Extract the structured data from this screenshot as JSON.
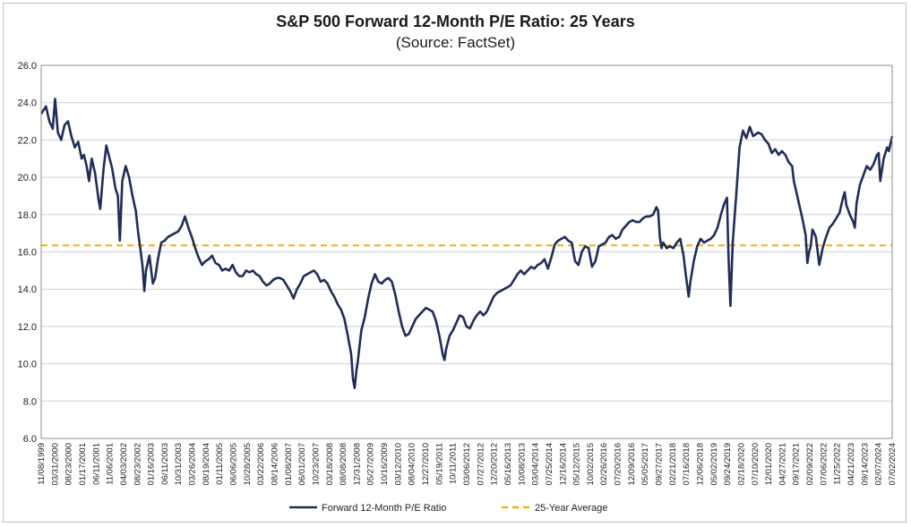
{
  "chart_data": {
    "type": "line",
    "title": "S&P 500 Forward 12-Month P/E Ratio: 25 Years",
    "subtitle": "(Source: FactSet)",
    "xlabel": "",
    "ylabel": "",
    "ylim": [
      6.0,
      26.0
    ],
    "y_ticks": [
      "26.0",
      "24.0",
      "22.0",
      "20.0",
      "18.0",
      "16.0",
      "14.0",
      "12.0",
      "10.0",
      "8.0",
      "6.0"
    ],
    "x_tick_labels": [
      "11/08/1999",
      "03/31/2000",
      "08/23/2000",
      "01/17/2001",
      "06/11/2001",
      "11/06/2001",
      "04/03/2002",
      "08/23/2002",
      "01/16/2003",
      "06/11/2003",
      "10/31/2003",
      "03/26/2004",
      "08/19/2004",
      "01/11/2005",
      "06/06/2005",
      "10/28/2005",
      "03/22/2006",
      "08/14/2006",
      "01/08/2007",
      "06/01/2007",
      "10/23/2007",
      "03/18/2008",
      "08/08/2008",
      "12/31/2008",
      "05/27/2009",
      "10/16/2009",
      "03/12/2010",
      "08/04/2010",
      "12/27/2010",
      "05/19/2011",
      "10/11/2011",
      "03/06/2012",
      "07/27/2012",
      "12/20/2012",
      "05/16/2013",
      "10/08/2013",
      "03/04/2014",
      "07/25/2014",
      "12/16/2014",
      "05/12/2015",
      "10/02/2015",
      "02/26/2016",
      "07/20/2016",
      "12/09/2016",
      "05/05/2017",
      "09/27/2017",
      "02/21/2018",
      "07/16/2018",
      "12/06/2018",
      "05/02/2019",
      "09/24/2019",
      "02/18/2020",
      "07/10/2020",
      "12/01/2020",
      "04/27/2021",
      "09/17/2021",
      "02/09/2022",
      "07/06/2022",
      "11/25/2022",
      "04/21/2023",
      "09/14/2023",
      "02/07/2024",
      "07/02/2024"
    ],
    "grid": true,
    "legend_position": "bottom",
    "series": [
      {
        "name": "Forward 12-Month P/E Ratio",
        "color": "#1f2d5a",
        "values": [
          [
            1999.86,
            23.4
          ],
          [
            2000.0,
            23.8
          ],
          [
            2000.1,
            23.0
          ],
          [
            2000.2,
            22.6
          ],
          [
            2000.27,
            24.2
          ],
          [
            2000.35,
            22.4
          ],
          [
            2000.45,
            22.0
          ],
          [
            2000.55,
            22.8
          ],
          [
            2000.65,
            23.0
          ],
          [
            2000.75,
            22.2
          ],
          [
            2000.85,
            21.6
          ],
          [
            2000.95,
            21.9
          ],
          [
            2001.05,
            21.0
          ],
          [
            2001.12,
            21.2
          ],
          [
            2001.2,
            20.6
          ],
          [
            2001.27,
            19.8
          ],
          [
            2001.35,
            21.0
          ],
          [
            2001.45,
            20.2
          ],
          [
            2001.55,
            18.8
          ],
          [
            2001.6,
            18.3
          ],
          [
            2001.7,
            20.5
          ],
          [
            2001.78,
            21.7
          ],
          [
            2001.85,
            21.2
          ],
          [
            2001.95,
            20.5
          ],
          [
            2002.05,
            19.4
          ],
          [
            2002.12,
            19.0
          ],
          [
            2002.18,
            16.6
          ],
          [
            2002.25,
            19.8
          ],
          [
            2002.35,
            20.6
          ],
          [
            2002.45,
            20.0
          ],
          [
            2002.55,
            19.0
          ],
          [
            2002.65,
            18.2
          ],
          [
            2002.72,
            17.0
          ],
          [
            2002.78,
            16.2
          ],
          [
            2002.85,
            15.2
          ],
          [
            2002.9,
            13.9
          ],
          [
            2002.95,
            15.0
          ],
          [
            2003.05,
            15.8
          ],
          [
            2003.15,
            14.3
          ],
          [
            2003.22,
            14.6
          ],
          [
            2003.3,
            15.6
          ],
          [
            2003.4,
            16.5
          ],
          [
            2003.5,
            16.6
          ],
          [
            2003.6,
            16.8
          ],
          [
            2003.7,
            16.9
          ],
          [
            2003.8,
            17.0
          ],
          [
            2003.9,
            17.1
          ],
          [
            2004.0,
            17.4
          ],
          [
            2004.1,
            17.9
          ],
          [
            2004.2,
            17.3
          ],
          [
            2004.3,
            16.8
          ],
          [
            2004.4,
            16.2
          ],
          [
            2004.5,
            15.7
          ],
          [
            2004.6,
            15.3
          ],
          [
            2004.7,
            15.5
          ],
          [
            2004.8,
            15.6
          ],
          [
            2004.9,
            15.8
          ],
          [
            2005.0,
            15.4
          ],
          [
            2005.1,
            15.3
          ],
          [
            2005.2,
            15.0
          ],
          [
            2005.3,
            15.1
          ],
          [
            2005.4,
            15.0
          ],
          [
            2005.5,
            15.3
          ],
          [
            2005.6,
            14.9
          ],
          [
            2005.7,
            14.7
          ],
          [
            2005.8,
            14.7
          ],
          [
            2005.9,
            15.0
          ],
          [
            2006.0,
            14.9
          ],
          [
            2006.1,
            15.0
          ],
          [
            2006.2,
            14.8
          ],
          [
            2006.3,
            14.7
          ],
          [
            2006.4,
            14.4
          ],
          [
            2006.5,
            14.2
          ],
          [
            2006.6,
            14.3
          ],
          [
            2006.7,
            14.5
          ],
          [
            2006.8,
            14.6
          ],
          [
            2006.9,
            14.6
          ],
          [
            2007.0,
            14.5
          ],
          [
            2007.1,
            14.2
          ],
          [
            2007.2,
            13.9
          ],
          [
            2007.3,
            13.5
          ],
          [
            2007.4,
            14.0
          ],
          [
            2007.5,
            14.3
          ],
          [
            2007.6,
            14.7
          ],
          [
            2007.7,
            14.8
          ],
          [
            2007.8,
            14.9
          ],
          [
            2007.9,
            15.0
          ],
          [
            2008.0,
            14.8
          ],
          [
            2008.1,
            14.4
          ],
          [
            2008.2,
            14.5
          ],
          [
            2008.3,
            14.3
          ],
          [
            2008.4,
            13.9
          ],
          [
            2008.5,
            13.6
          ],
          [
            2008.6,
            13.2
          ],
          [
            2008.7,
            12.9
          ],
          [
            2008.8,
            12.4
          ],
          [
            2008.9,
            11.5
          ],
          [
            2009.0,
            10.5
          ],
          [
            2009.05,
            9.2
          ],
          [
            2009.1,
            8.7
          ],
          [
            2009.15,
            9.6
          ],
          [
            2009.2,
            10.2
          ],
          [
            2009.3,
            11.8
          ],
          [
            2009.4,
            12.5
          ],
          [
            2009.5,
            13.5
          ],
          [
            2009.6,
            14.3
          ],
          [
            2009.7,
            14.8
          ],
          [
            2009.8,
            14.4
          ],
          [
            2009.9,
            14.3
          ],
          [
            2010.0,
            14.5
          ],
          [
            2010.1,
            14.6
          ],
          [
            2010.2,
            14.4
          ],
          [
            2010.3,
            13.7
          ],
          [
            2010.4,
            12.8
          ],
          [
            2010.5,
            12.0
          ],
          [
            2010.6,
            11.5
          ],
          [
            2010.7,
            11.6
          ],
          [
            2010.8,
            12.0
          ],
          [
            2010.9,
            12.4
          ],
          [
            2011.0,
            12.6
          ],
          [
            2011.1,
            12.8
          ],
          [
            2011.2,
            13.0
          ],
          [
            2011.3,
            12.9
          ],
          [
            2011.4,
            12.8
          ],
          [
            2011.5,
            12.3
          ],
          [
            2011.6,
            11.5
          ],
          [
            2011.7,
            10.5
          ],
          [
            2011.75,
            10.2
          ],
          [
            2011.8,
            10.8
          ],
          [
            2011.9,
            11.5
          ],
          [
            2012.0,
            11.8
          ],
          [
            2012.1,
            12.2
          ],
          [
            2012.2,
            12.6
          ],
          [
            2012.3,
            12.5
          ],
          [
            2012.4,
            12.0
          ],
          [
            2012.5,
            11.9
          ],
          [
            2012.6,
            12.3
          ],
          [
            2012.7,
            12.6
          ],
          [
            2012.8,
            12.8
          ],
          [
            2012.9,
            12.6
          ],
          [
            2013.0,
            12.8
          ],
          [
            2013.1,
            13.2
          ],
          [
            2013.2,
            13.6
          ],
          [
            2013.3,
            13.8
          ],
          [
            2013.4,
            13.9
          ],
          [
            2013.5,
            14.0
          ],
          [
            2013.6,
            14.1
          ],
          [
            2013.7,
            14.2
          ],
          [
            2013.8,
            14.5
          ],
          [
            2013.9,
            14.8
          ],
          [
            2014.0,
            15.0
          ],
          [
            2014.1,
            14.8
          ],
          [
            2014.2,
            15.0
          ],
          [
            2014.3,
            15.2
          ],
          [
            2014.4,
            15.1
          ],
          [
            2014.5,
            15.3
          ],
          [
            2014.6,
            15.4
          ],
          [
            2014.7,
            15.6
          ],
          [
            2014.8,
            15.1
          ],
          [
            2014.9,
            15.7
          ],
          [
            2015.0,
            16.4
          ],
          [
            2015.1,
            16.6
          ],
          [
            2015.2,
            16.7
          ],
          [
            2015.3,
            16.8
          ],
          [
            2015.4,
            16.6
          ],
          [
            2015.5,
            16.5
          ],
          [
            2015.6,
            15.5
          ],
          [
            2015.7,
            15.3
          ],
          [
            2015.8,
            16.0
          ],
          [
            2015.9,
            16.3
          ],
          [
            2016.0,
            16.2
          ],
          [
            2016.1,
            15.2
          ],
          [
            2016.2,
            15.5
          ],
          [
            2016.3,
            16.3
          ],
          [
            2016.4,
            16.4
          ],
          [
            2016.5,
            16.5
          ],
          [
            2016.6,
            16.8
          ],
          [
            2016.7,
            16.9
          ],
          [
            2016.8,
            16.7
          ],
          [
            2016.9,
            16.8
          ],
          [
            2017.0,
            17.2
          ],
          [
            2017.1,
            17.4
          ],
          [
            2017.2,
            17.6
          ],
          [
            2017.3,
            17.7
          ],
          [
            2017.4,
            17.6
          ],
          [
            2017.5,
            17.6
          ],
          [
            2017.6,
            17.8
          ],
          [
            2017.7,
            17.9
          ],
          [
            2017.8,
            17.9
          ],
          [
            2017.9,
            18.0
          ],
          [
            2018.0,
            18.4
          ],
          [
            2018.05,
            18.2
          ],
          [
            2018.1,
            16.8
          ],
          [
            2018.15,
            16.2
          ],
          [
            2018.2,
            16.5
          ],
          [
            2018.3,
            16.2
          ],
          [
            2018.4,
            16.3
          ],
          [
            2018.5,
            16.2
          ],
          [
            2018.6,
            16.5
          ],
          [
            2018.7,
            16.7
          ],
          [
            2018.8,
            15.8
          ],
          [
            2018.85,
            15.0
          ],
          [
            2018.95,
            13.6
          ],
          [
            2019.0,
            14.4
          ],
          [
            2019.1,
            15.5
          ],
          [
            2019.2,
            16.3
          ],
          [
            2019.3,
            16.7
          ],
          [
            2019.4,
            16.5
          ],
          [
            2019.5,
            16.6
          ],
          [
            2019.6,
            16.7
          ],
          [
            2019.7,
            16.9
          ],
          [
            2019.8,
            17.3
          ],
          [
            2019.9,
            18.0
          ],
          [
            2020.0,
            18.6
          ],
          [
            2020.08,
            18.9
          ],
          [
            2020.12,
            16.0
          ],
          [
            2020.18,
            13.1
          ],
          [
            2020.25,
            16.5
          ],
          [
            2020.35,
            19.0
          ],
          [
            2020.45,
            21.6
          ],
          [
            2020.55,
            22.5
          ],
          [
            2020.65,
            22.1
          ],
          [
            2020.75,
            22.7
          ],
          [
            2020.85,
            22.2
          ],
          [
            2021.0,
            22.4
          ],
          [
            2021.1,
            22.3
          ],
          [
            2021.2,
            22.0
          ],
          [
            2021.3,
            21.8
          ],
          [
            2021.4,
            21.3
          ],
          [
            2021.5,
            21.5
          ],
          [
            2021.6,
            21.2
          ],
          [
            2021.7,
            21.4
          ],
          [
            2021.8,
            21.2
          ],
          [
            2021.9,
            20.8
          ],
          [
            2022.0,
            20.6
          ],
          [
            2022.05,
            19.8
          ],
          [
            2022.1,
            19.4
          ],
          [
            2022.2,
            18.6
          ],
          [
            2022.3,
            17.8
          ],
          [
            2022.4,
            16.9
          ],
          [
            2022.45,
            15.4
          ],
          [
            2022.5,
            16.0
          ],
          [
            2022.55,
            16.3
          ],
          [
            2022.6,
            17.2
          ],
          [
            2022.7,
            16.8
          ],
          [
            2022.8,
            15.3
          ],
          [
            2022.9,
            16.2
          ],
          [
            2023.0,
            16.8
          ],
          [
            2023.1,
            17.3
          ],
          [
            2023.2,
            17.5
          ],
          [
            2023.3,
            17.8
          ],
          [
            2023.4,
            18.1
          ],
          [
            2023.5,
            18.9
          ],
          [
            2023.55,
            19.2
          ],
          [
            2023.6,
            18.5
          ],
          [
            2023.7,
            18.0
          ],
          [
            2023.8,
            17.6
          ],
          [
            2023.85,
            17.3
          ],
          [
            2023.9,
            18.6
          ],
          [
            2024.0,
            19.6
          ],
          [
            2024.1,
            20.1
          ],
          [
            2024.2,
            20.6
          ],
          [
            2024.3,
            20.4
          ],
          [
            2024.4,
            20.7
          ],
          [
            2024.5,
            21.2
          ],
          [
            2024.55,
            21.3
          ],
          [
            2024.6,
            19.8
          ],
          [
            2024.7,
            21.0
          ],
          [
            2024.8,
            21.6
          ],
          [
            2024.85,
            21.4
          ],
          [
            2024.9,
            21.8
          ],
          [
            2024.95,
            22.2
          ]
        ]
      },
      {
        "name": "25-Year Average",
        "color": "#f0b400",
        "value": 16.35
      }
    ]
  }
}
